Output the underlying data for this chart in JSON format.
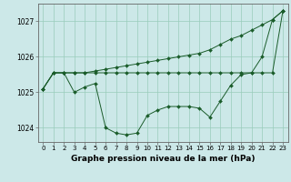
{
  "title": "Graphe pression niveau de la mer (hPa)",
  "background_color": "#cce8e8",
  "grid_color": "#99ccbb",
  "line_color": "#1a5c2a",
  "xlim": [
    -0.5,
    23.5
  ],
  "ylim": [
    1023.6,
    1027.5
  ],
  "yticks": [
    1024,
    1025,
    1026,
    1027
  ],
  "xticks": [
    0,
    1,
    2,
    3,
    4,
    5,
    6,
    7,
    8,
    9,
    10,
    11,
    12,
    13,
    14,
    15,
    16,
    17,
    18,
    19,
    20,
    21,
    22,
    23
  ],
  "line1_y": [
    1025.1,
    1025.55,
    1025.55,
    1025.55,
    1025.55,
    1025.55,
    1025.55,
    1025.55,
    1025.55,
    1025.55,
    1025.55,
    1025.55,
    1025.55,
    1025.55,
    1025.55,
    1025.55,
    1025.55,
    1025.55,
    1025.55,
    1025.55,
    1025.55,
    1025.55,
    1025.55,
    1027.3
  ],
  "line2_y": [
    1025.1,
    1025.55,
    1025.55,
    1025.55,
    1025.55,
    1025.6,
    1025.65,
    1025.7,
    1025.75,
    1025.8,
    1025.85,
    1025.9,
    1025.95,
    1026.0,
    1026.05,
    1026.1,
    1026.2,
    1026.35,
    1026.5,
    1026.6,
    1026.75,
    1026.9,
    1027.05,
    1027.3
  ],
  "line3_y": [
    1025.1,
    1025.55,
    1025.55,
    1025.0,
    1025.15,
    1025.25,
    1024.0,
    1023.85,
    1023.8,
    1023.85,
    1024.35,
    1024.5,
    1024.6,
    1024.6,
    1024.6,
    1024.55,
    1024.3,
    1024.75,
    1025.2,
    1025.5,
    1025.55,
    1026.0,
    1027.05,
    1027.3
  ],
  "tick_fontsize": 5.5,
  "title_fontsize": 6.5,
  "marker_size": 2.0,
  "line_width": 0.7
}
